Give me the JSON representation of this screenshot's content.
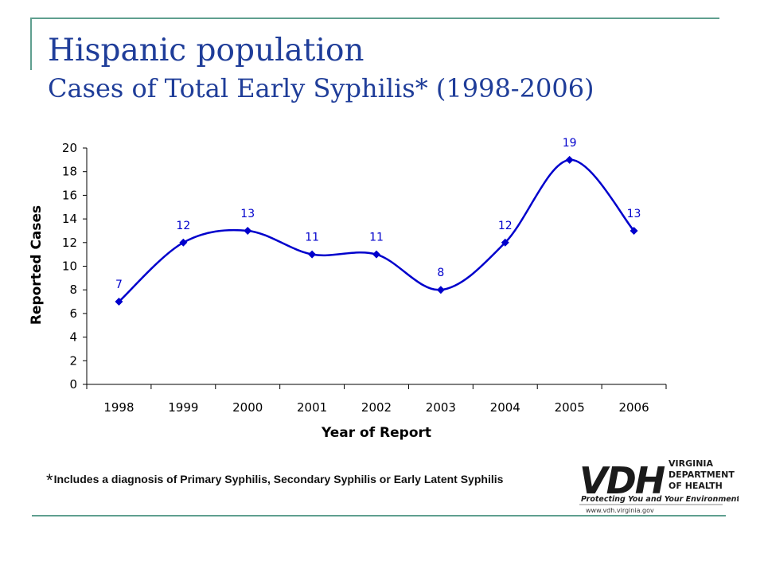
{
  "title": {
    "line1": "Hispanic population",
    "line2": "Cases of Total Early Syphilis* (1998-2006)"
  },
  "footnote": {
    "star": "*",
    "text": "Includes a diagnosis of Primary Syphilis, Secondary Syphilis or Early Latent Syphilis"
  },
  "logo": {
    "mark": "VDH",
    "line1": "VIRGINIA",
    "line2": "DEPARTMENT",
    "line3": "OF HEALTH",
    "tagline": "Protecting You and Your Environment",
    "url": "www.vdh.virginia.gov"
  },
  "colors": {
    "title": "#1f3d99",
    "series": "#0000cc",
    "frame": "#5f9f8f"
  },
  "chart_data": {
    "type": "line",
    "title": "",
    "xlabel": "Year of Report",
    "ylabel": "Reported Cases",
    "categories": [
      "1998",
      "1999",
      "2000",
      "2001",
      "2002",
      "2003",
      "2004",
      "2005",
      "2006"
    ],
    "values": [
      7,
      12,
      13,
      11,
      11,
      8,
      12,
      19,
      13
    ],
    "ylim": [
      0,
      20
    ],
    "yticks": [
      0,
      2,
      4,
      6,
      8,
      10,
      12,
      14,
      16,
      18,
      20
    ],
    "smooth": true,
    "marker": "diamond",
    "data_labels": true,
    "grid": false,
    "legend": "none"
  }
}
